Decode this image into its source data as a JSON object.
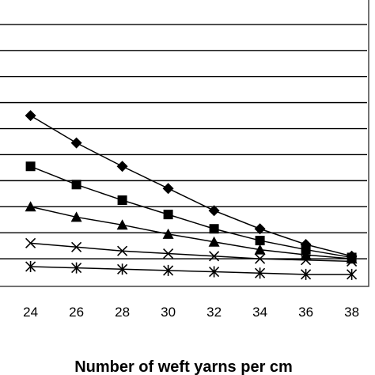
{
  "chart_data": {
    "type": "line",
    "title": "",
    "xlabel": "Number of weft yarns per cm",
    "ylabel": "",
    "x_ticks": [
      "24",
      "26",
      "28",
      "30",
      "32",
      "34",
      "36",
      "38"
    ],
    "xlim": [
      22.6,
      38.6
    ],
    "ylim": [
      0,
      11
    ],
    "grid": true,
    "series": [
      {
        "marker": "diamond",
        "x": [
          24,
          26,
          28,
          30,
          32,
          34,
          36,
          38
        ],
        "y": [
          6.5,
          5.45,
          4.55,
          3.7,
          2.85,
          2.15,
          1.55,
          1.1
        ]
      },
      {
        "marker": "square",
        "x": [
          24,
          26,
          28,
          30,
          32,
          34,
          36,
          38
        ],
        "y": [
          4.55,
          3.85,
          3.25,
          2.7,
          2.15,
          1.7,
          1.35,
          1.05
        ]
      },
      {
        "marker": "triangle",
        "x": [
          24,
          26,
          28,
          30,
          32,
          34,
          36,
          38
        ],
        "y": [
          3.0,
          2.6,
          2.3,
          1.95,
          1.65,
          1.35,
          1.15,
          1.0
        ]
      },
      {
        "marker": "x",
        "x": [
          24,
          26,
          28,
          30,
          32,
          34,
          36,
          38
        ],
        "y": [
          1.6,
          1.45,
          1.3,
          1.2,
          1.1,
          1.0,
          0.95,
          0.9
        ]
      },
      {
        "marker": "star",
        "x": [
          24,
          26,
          28,
          30,
          32,
          34,
          36,
          38
        ],
        "y": [
          0.7,
          0.65,
          0.6,
          0.55,
          0.5,
          0.45,
          0.4,
          0.4
        ]
      }
    ]
  }
}
